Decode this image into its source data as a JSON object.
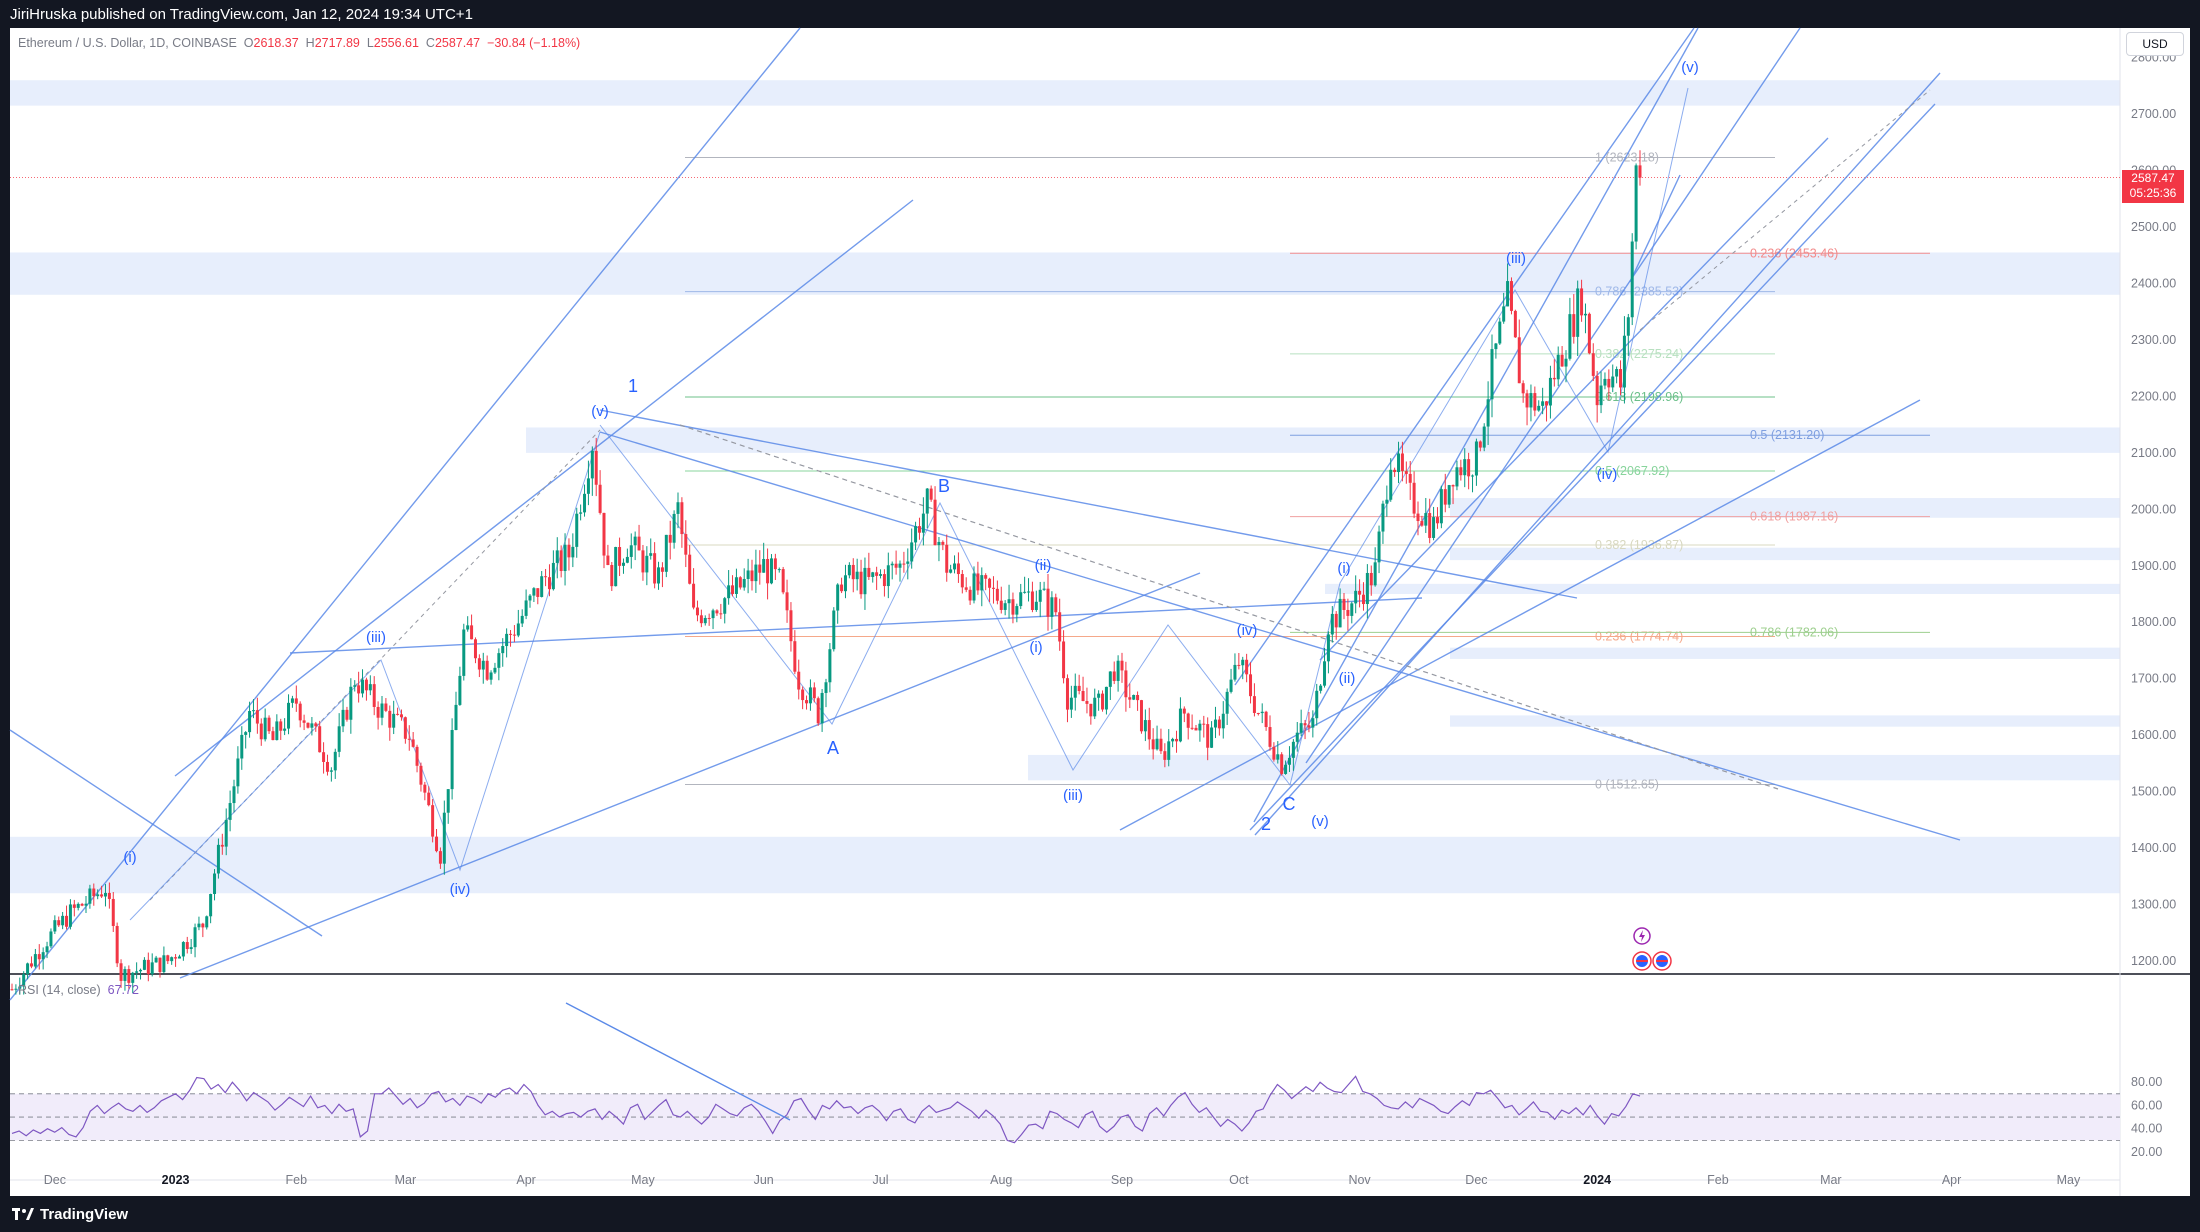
{
  "header": {
    "published_by": "JiriHruska published on TradingView.com, Jan 12, 2024 19:34 UTC+1"
  },
  "footer": {
    "brand": "TradingView"
  },
  "symbol": {
    "name": "Ethereum / U.S. Dollar, 1D, COINBASE",
    "o_label": "O",
    "o": "2618.37",
    "h_label": "H",
    "h": "2717.89",
    "l_label": "L",
    "l": "2556.61",
    "c_label": "C",
    "c": "2587.47",
    "change": "−30.84 (−1.18%)"
  },
  "currency": "USD",
  "last_price": {
    "value": "2587.47",
    "countdown": "05:25:36"
  },
  "rsi": {
    "label": "RSI (14, close)",
    "value": "67.72"
  },
  "colors": {
    "up": "#089981",
    "down": "#f23645",
    "drawing": "#5b8ae8",
    "zone": "#e7eefc",
    "rsi": "#7e57c2",
    "rsi_band": "#f1ecfa"
  },
  "chart_data": [
    {
      "type": "candlestick",
      "title": "Ethereum / U.S. Dollar, 1D, COINBASE",
      "x_ticks": [
        "Dec",
        "2023",
        "Feb",
        "Mar",
        "Apr",
        "May",
        "Jun",
        "Jul",
        "Aug",
        "Sep",
        "Oct",
        "Nov",
        "Dec",
        "2024",
        "Feb",
        "Mar",
        "Apr",
        "May"
      ],
      "y_ticks": [
        "1200.00",
        "1300.00",
        "1400.00",
        "1500.00",
        "1600.00",
        "1700.00",
        "1800.00",
        "1900.00",
        "2000.00",
        "2100.00",
        "2200.00",
        "2300.00",
        "2400.00",
        "2500.00",
        "2600.00",
        "2700.00",
        "2800.00"
      ],
      "ylim": [
        1175,
        2850
      ],
      "grid": false,
      "price_path": [
        [
          "2022-11-20",
          1150
        ],
        [
          "2022-11-28",
          1230
        ],
        [
          "2022-12-05",
          1285
        ],
        [
          "2022-12-14",
          1330
        ],
        [
          "2022-12-18",
          1175
        ],
        [
          "2022-12-30",
          1200
        ],
        [
          "2023-01-08",
          1265
        ],
        [
          "2023-01-14",
          1450
        ],
        [
          "2023-01-20",
          1640
        ],
        [
          "2023-01-26",
          1590
        ],
        [
          "2023-02-01",
          1660
        ],
        [
          "2023-02-10",
          1545
        ],
        [
          "2023-02-16",
          1700
        ],
        [
          "2023-02-22",
          1650
        ],
        [
          "2023-03-02",
          1600
        ],
        [
          "2023-03-10",
          1390
        ],
        [
          "2023-03-16",
          1780
        ],
        [
          "2023-03-22",
          1720
        ],
        [
          "2023-03-30",
          1800
        ],
        [
          "2023-04-06",
          1880
        ],
        [
          "2023-04-12",
          1920
        ],
        [
          "2023-04-18",
          2120
        ],
        [
          "2023-04-22",
          1880
        ],
        [
          "2023-04-27",
          1940
        ],
        [
          "2023-05-05",
          1880
        ],
        [
          "2023-05-10",
          2000
        ],
        [
          "2023-05-14",
          1810
        ],
        [
          "2023-05-24",
          1850
        ],
        [
          "2023-06-01",
          1900
        ],
        [
          "2023-06-05",
          1870
        ],
        [
          "2023-06-10",
          1700
        ],
        [
          "2023-06-15",
          1640
        ],
        [
          "2023-06-21",
          1880
        ],
        [
          "2023-06-28",
          1870
        ],
        [
          "2023-07-06",
          1900
        ],
        [
          "2023-07-13",
          2010
        ],
        [
          "2023-07-18",
          1900
        ],
        [
          "2023-07-25",
          1860
        ],
        [
          "2023-08-03",
          1840
        ],
        [
          "2023-08-10",
          1850
        ],
        [
          "2023-08-15",
          1820
        ],
        [
          "2023-08-18",
          1670
        ],
        [
          "2023-08-26",
          1650
        ],
        [
          "2023-08-30",
          1720
        ],
        [
          "2023-09-05",
          1640
        ],
        [
          "2023-09-11",
          1560
        ],
        [
          "2023-09-17",
          1640
        ],
        [
          "2023-09-24",
          1590
        ],
        [
          "2023-10-01",
          1730
        ],
        [
          "2023-10-06",
          1640
        ],
        [
          "2023-10-12",
          1550
        ],
        [
          "2023-10-16",
          1600
        ],
        [
          "2023-10-20",
          1620
        ],
        [
          "2023-10-24",
          1800
        ],
        [
          "2023-10-31",
          1840
        ],
        [
          "2023-11-05",
          1890
        ],
        [
          "2023-11-09",
          2100
        ],
        [
          "2023-11-14",
          2020
        ],
        [
          "2023-11-20",
          1970
        ],
        [
          "2023-11-25",
          2070
        ],
        [
          "2023-12-01",
          2090
        ],
        [
          "2023-12-05",
          2250
        ],
        [
          "2023-12-09",
          2370
        ],
        [
          "2023-12-13",
          2200
        ],
        [
          "2023-12-18",
          2180
        ],
        [
          "2023-12-24",
          2300
        ],
        [
          "2023-12-28",
          2380
        ],
        [
          "2024-01-01",
          2200
        ],
        [
          "2024-01-03",
          2250
        ],
        [
          "2024-01-07",
          2220
        ],
        [
          "2024-01-09",
          2350
        ],
        [
          "2024-01-11",
          2600
        ],
        [
          "2024-01-12",
          2587.47
        ]
      ],
      "wave_labels": [
        "(i)",
        "(iii)",
        "(iv)",
        "(v)",
        "1",
        "A",
        "B",
        "(ii)",
        "(i)",
        "(iii)",
        "(iv)",
        "2",
        "C",
        "(v)",
        "(i)",
        "(ii)",
        "(iii)",
        "(iv)",
        "(v)"
      ],
      "fib_labels": [
        {
          "text": "1 (2623.18)",
          "value": 2623.18
        },
        {
          "text": "0.236 (2453.46)",
          "value": 2453.46
        },
        {
          "text": "0.786 (2385.53)",
          "value": 2385.53
        },
        {
          "text": "0.382 (2275.24)",
          "value": 2275.24
        },
        {
          "text": "0.618 (2198.96)",
          "value": 2198.96
        },
        {
          "text": "0.5 (2131.20)",
          "value": 2131.2
        },
        {
          "text": "0.5 (2067.92)",
          "value": 2067.92
        },
        {
          "text": "0.618 (1987.16)",
          "value": 1987.16
        },
        {
          "text": "0.382 (1936.87)",
          "value": 1936.87
        },
        {
          "text": "0.236 (1774.74)",
          "value": 1774.74
        },
        {
          "text": "0.786 (1782.06)",
          "value": 1782.06
        },
        {
          "text": "0 (1512.65)",
          "value": 1512.65
        }
      ],
      "zones": [
        [
          2715,
          2760
        ],
        [
          2380,
          2455
        ],
        [
          2100,
          2145
        ],
        [
          1985,
          2020
        ],
        [
          1910,
          1932
        ],
        [
          1850,
          1868
        ],
        [
          1735,
          1755
        ],
        [
          1615,
          1635
        ],
        [
          1520,
          1565
        ],
        [
          1320,
          1420
        ]
      ]
    },
    {
      "type": "line",
      "title": "RSI (14, close)",
      "y_ticks": [
        "20.00",
        "40.00",
        "60.00",
        "80.00"
      ],
      "ylim": [
        15,
        90
      ],
      "band": [
        30,
        70
      ],
      "mid": 50,
      "values": [
        36,
        38,
        34,
        39,
        36,
        40,
        37,
        41,
        35,
        33,
        41,
        55,
        60,
        53,
        58,
        62,
        57,
        55,
        60,
        54,
        58,
        64,
        67,
        70,
        65,
        73,
        84,
        83,
        74,
        78,
        71,
        80,
        73,
        64,
        71,
        67,
        63,
        56,
        61,
        67,
        63,
        59,
        68,
        58,
        60,
        53,
        61,
        55,
        57,
        33,
        38,
        70,
        70,
        75,
        68,
        61,
        66,
        58,
        62,
        70,
        72,
        63,
        66,
        60,
        68,
        66,
        62,
        70,
        67,
        73,
        75,
        70,
        78,
        72,
        60,
        52,
        55,
        50,
        53,
        54,
        50,
        55,
        57,
        48,
        55,
        50,
        44,
        58,
        61,
        48,
        54,
        60,
        65,
        52,
        50,
        55,
        49,
        44,
        50,
        61,
        57,
        53,
        51,
        58,
        61,
        55,
        46,
        36,
        47,
        52,
        64,
        66,
        56,
        48,
        60,
        57,
        64,
        58,
        59,
        53,
        58,
        60,
        55,
        47,
        55,
        57,
        48,
        45,
        55,
        60,
        54,
        56,
        58,
        63,
        59,
        55,
        49,
        56,
        51,
        44,
        30,
        28,
        35,
        43,
        44,
        40,
        55,
        53,
        48,
        45,
        41,
        52,
        55,
        42,
        37,
        42,
        50,
        52,
        42,
        38,
        53,
        58,
        51,
        60,
        67,
        71,
        61,
        54,
        58,
        50,
        42,
        48,
        44,
        38,
        45,
        55,
        57,
        69,
        78,
        73,
        66,
        71,
        76,
        72,
        80,
        75,
        72,
        71,
        78,
        85,
        72,
        70,
        66,
        60,
        58,
        57,
        63,
        58,
        66,
        63,
        60,
        55,
        53,
        59,
        64,
        60,
        71,
        70,
        73,
        66,
        58,
        60,
        52,
        57,
        63,
        55,
        54,
        48,
        56,
        53,
        58,
        52,
        60,
        51,
        44,
        53,
        51,
        59,
        70,
        68
      ]
    }
  ]
}
